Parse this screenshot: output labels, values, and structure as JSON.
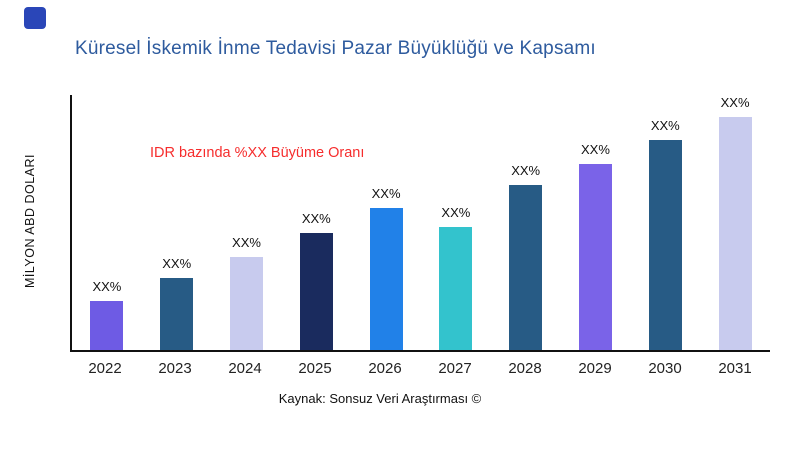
{
  "logo": {
    "color": "#2a46b8"
  },
  "title": {
    "text": "Küresel İskemik İnme Tedavisi Pazar Büyüklüğü ve Kapsamı",
    "color": "#2e5b9e"
  },
  "annotation": {
    "text": "IDR bazında %XX Büyüme Oranı",
    "color": "#f62d2d"
  },
  "source": {
    "text": "Kaynak: Sonsuz Veri Araştırması ©"
  },
  "chart_data": {
    "type": "bar",
    "title": "Küresel İskemik İnme Tedavisi Pazar Büyüklüğü ve Kapsamı",
    "categories": [
      "2022",
      "2023",
      "2024",
      "2025",
      "2026",
      "2027",
      "2028",
      "2029",
      "2030",
      "2031"
    ],
    "values": [
      21,
      31,
      40,
      50,
      61,
      53,
      71,
      80,
      90,
      100
    ],
    "bar_labels": [
      "XX%",
      "XX%",
      "XX%",
      "XX%",
      "XX%",
      "XX%",
      "XX%",
      "XX%",
      "XX%",
      "XX%"
    ],
    "bar_colors": [
      "#6e5be4",
      "#275b85",
      "#c8cbee",
      "#1a2b5e",
      "#2181e8",
      "#33c3cd",
      "#275b85",
      "#7a63e8",
      "#275b85",
      "#c8cbee"
    ],
    "xlabel": "",
    "ylabel": "MİLYON ABD DOLARI",
    "ylim": [
      0,
      100
    ],
    "grid": false,
    "legend": "none",
    "annotation": "IDR bazında %XX Büyüme Oranı",
    "source": "Kaynak: Sonsuz Veri Araştırması ©"
  }
}
